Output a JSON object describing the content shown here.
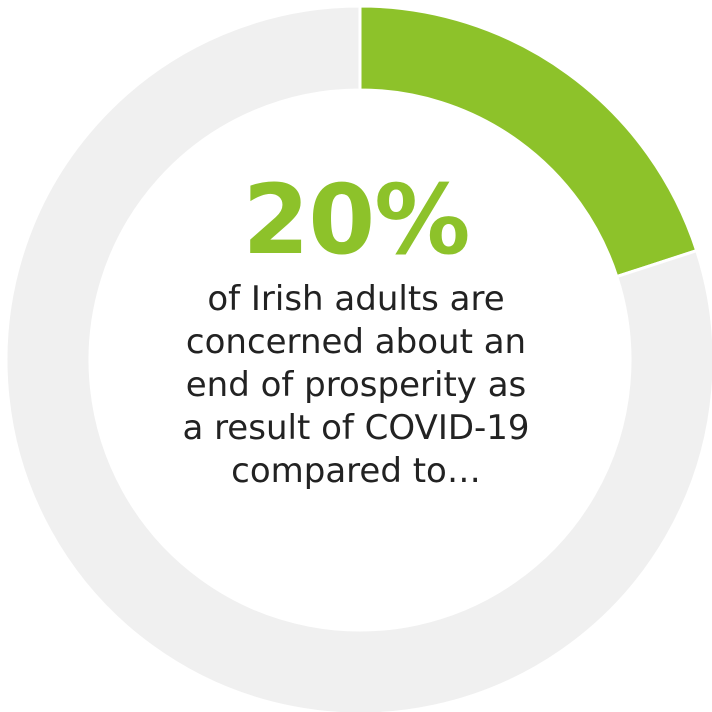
{
  "colors": {
    "highlight": "#8DC22A",
    "remainder": "#F0F0F0",
    "separator": "#FFFFFF"
  },
  "chart_data": {
    "type": "pie",
    "variant": "donut",
    "values": [
      20,
      80
    ],
    "value_label": "20%",
    "caption_lines": [
      "of Irish adults are",
      "concerned about an",
      "end of prosperity as",
      "a result of COVID-19",
      "compared to…"
    ]
  }
}
